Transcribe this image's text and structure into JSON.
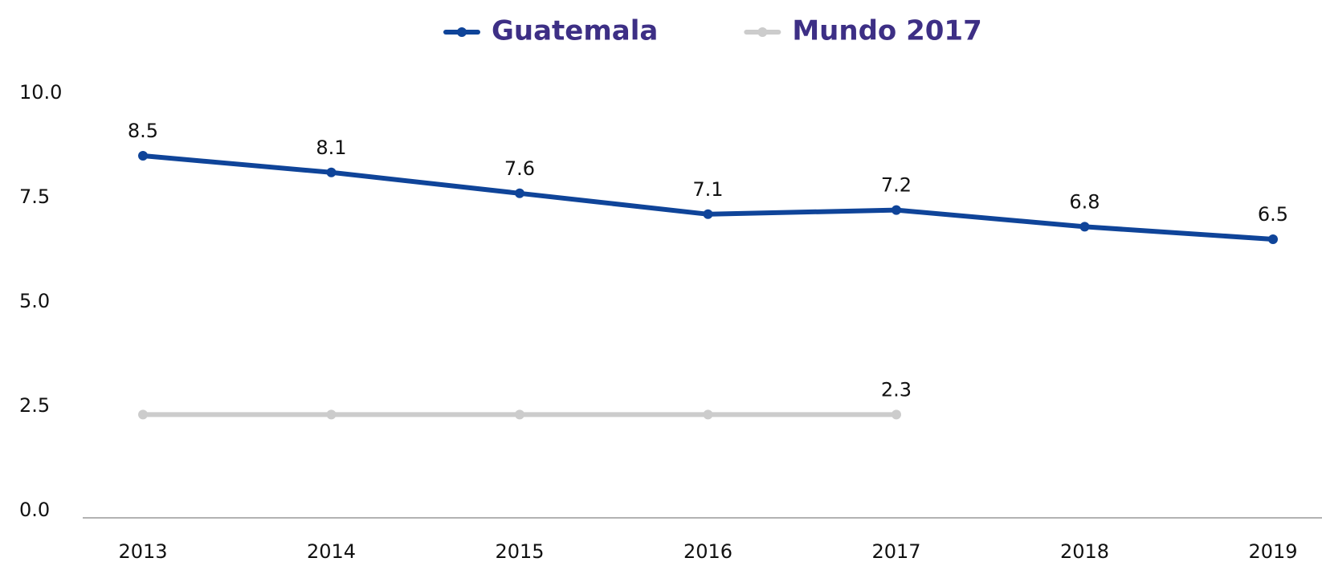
{
  "chart_data": {
    "type": "line",
    "categories": [
      "2013",
      "2014",
      "2015",
      "2016",
      "2017",
      "2018",
      "2019"
    ],
    "series": [
      {
        "name": "Guatemala",
        "color": "#0f4499",
        "values": [
          8.5,
          8.1,
          7.6,
          7.1,
          7.2,
          6.8,
          6.5
        ]
      },
      {
        "name": "Mundo 2017",
        "color": "#cccccc",
        "values": [
          2.3,
          2.3,
          2.3,
          2.3,
          2.3,
          null,
          null
        ],
        "value_labels": [
          null,
          null,
          null,
          null,
          "2.3",
          null,
          null
        ]
      }
    ],
    "ylim": [
      0,
      10
    ],
    "yticks": [
      {
        "value": 0,
        "label": "0.0"
      },
      2.5,
      {
        "value": 5,
        "label": "5.0"
      },
      7.5,
      {
        "value": 10,
        "label": "10.0"
      }
    ],
    "legend": "top"
  }
}
